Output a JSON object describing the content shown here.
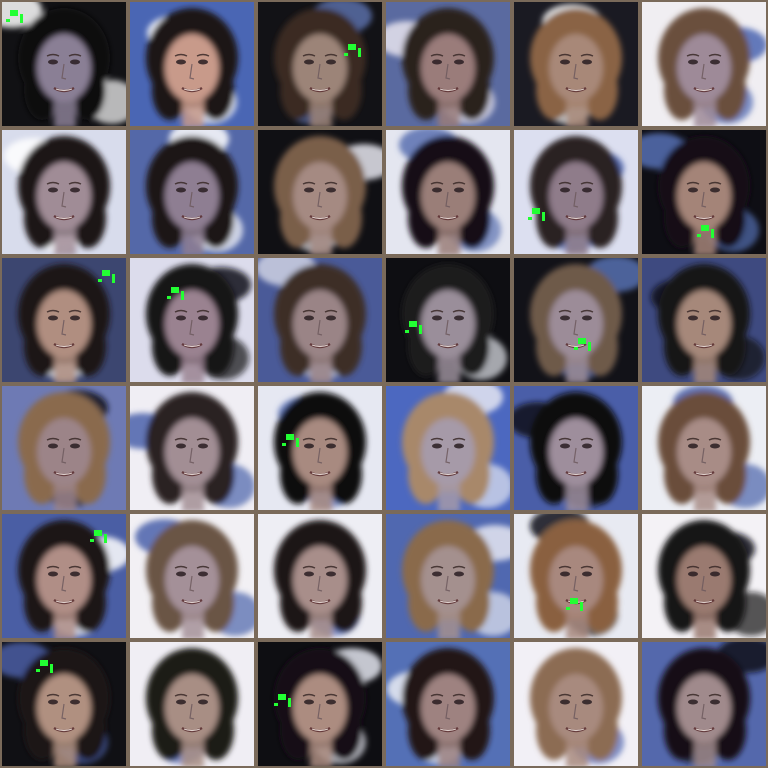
{
  "grid": {
    "rows": 6,
    "cols": 6,
    "tiles": [
      {
        "bg": "#111114",
        "hair": "#0c0b0d",
        "skin": "#8a7f95",
        "cloud": "#ffffff",
        "artifact": "#22ff33"
      },
      {
        "bg": "#4a66b4",
        "hair": "#1b1614",
        "skin": "#c89a8a",
        "cloud": "#ffffff",
        "artifact": ""
      },
      {
        "bg": "#121216",
        "hair": "#3a2a22",
        "skin": "#9c8478",
        "cloud": "#5a6ea8",
        "artifact": "#22ff33"
      },
      {
        "bg": "#5a6aa0",
        "hair": "#2a201c",
        "skin": "#9a7c7a",
        "cloud": "#e8e4ee",
        "artifact": ""
      },
      {
        "bg": "#1a1a22",
        "hair": "#8a6444",
        "skin": "#a88878",
        "cloud": "#ffffff",
        "artifact": ""
      },
      {
        "bg": "#f0eef2",
        "hair": "#6a503c",
        "skin": "#9e8a98",
        "cloud": "#4a64b0",
        "artifact": ""
      },
      {
        "bg": "#d8dcec",
        "hair": "#1a1516",
        "skin": "#a08c96",
        "cloud": "#ffffff",
        "artifact": ""
      },
      {
        "bg": "#5468a8",
        "hair": "#1e1818",
        "skin": "#8e7e92",
        "cloud": "#ffffff",
        "artifact": ""
      },
      {
        "bg": "#101014",
        "hair": "#7a5e4a",
        "skin": "#a58a82",
        "cloud": "#e8e8f0",
        "artifact": ""
      },
      {
        "bg": "#e4e6f0",
        "hair": "#141014",
        "skin": "#9a7e78",
        "cloud": "#5a70b0",
        "artifact": ""
      },
      {
        "bg": "#dcdff0",
        "hair": "#2a2020",
        "skin": "#8f7c8a",
        "cloud": "#4a62aa",
        "artifact": "#22ff33"
      },
      {
        "bg": "#0e0e14",
        "hair": "#121014",
        "skin": "#a48478",
        "cloud": "#5670b4",
        "artifact": "#22ff33"
      },
      {
        "bg": "#3c4670",
        "hair": "#1a1416",
        "skin": "#b08e80",
        "cloud": "#ffffff",
        "artifact": "#22ff33"
      },
      {
        "bg": "#dcdcec",
        "hair": "#161214",
        "skin": "#9a8290",
        "cloud": "#111116",
        "artifact": "#22ff33"
      },
      {
        "bg": "#4a5a98",
        "hair": "#3c2e26",
        "skin": "#9a8486",
        "cloud": "#cfd2e4",
        "artifact": ""
      },
      {
        "bg": "#0e0e12",
        "hair": "#1e1a1e",
        "skin": "#9a8e9a",
        "cloud": "#e6e8f0",
        "artifact": "#22ff33"
      },
      {
        "bg": "#121218",
        "hair": "#6e5a4a",
        "skin": "#9c8c98",
        "cloud": "#5570b0",
        "artifact": "#22ff33"
      },
      {
        "bg": "#3e4a80",
        "hair": "#161214",
        "skin": "#a6887a",
        "cloud": "#121216",
        "artifact": ""
      },
      {
        "bg": "#6e7ab4",
        "hair": "#8a6a4e",
        "skin": "#9c8488",
        "cloud": "#121216",
        "artifact": ""
      },
      {
        "bg": "#f0eef4",
        "hair": "#2a2220",
        "skin": "#a28e94",
        "cloud": "#4a62aa",
        "artifact": ""
      },
      {
        "bg": "#e6e8f2",
        "hair": "#0e0c0e",
        "skin": "#a88a80",
        "cloud": "#5a72b6",
        "artifact": "#22ff33"
      },
      {
        "bg": "#4c68c0",
        "hair": "#a8886a",
        "skin": "#a69aa8",
        "cloud": "#e6e8f2",
        "artifact": ""
      },
      {
        "bg": "#4a5ea8",
        "hair": "#0c0a0e",
        "skin": "#9e8e9c",
        "cloud": "#121216",
        "artifact": ""
      },
      {
        "bg": "#eceef4",
        "hair": "#6a4e3a",
        "skin": "#a88c86",
        "cloud": "#4a62aa",
        "artifact": ""
      },
      {
        "bg": "#4a5ea4",
        "hair": "#1e1818",
        "skin": "#b08e86",
        "cloud": "#ffffff",
        "artifact": "#22ff33"
      },
      {
        "bg": "#f2f0f4",
        "hair": "#6a5444",
        "skin": "#a49098",
        "cloud": "#4a62aa",
        "artifact": ""
      },
      {
        "bg": "#eeeef4",
        "hair": "#1e1818",
        "skin": "#a88e8a",
        "cloud": "#5066b0",
        "artifact": ""
      },
      {
        "bg": "#5068b0",
        "hair": "#8a6a4c",
        "skin": "#a4908e",
        "cloud": "#e6e8f2",
        "artifact": ""
      },
      {
        "bg": "#e8eaf2",
        "hair": "#8a6040",
        "skin": "#a8887e",
        "cloud": "#111116",
        "artifact": "#22ff33"
      },
      {
        "bg": "#f4f2f6",
        "hair": "#181416",
        "skin": "#9a7a70",
        "cloud": "#121216",
        "artifact": ""
      },
      {
        "bg": "#101014",
        "hair": "#1a1416",
        "skin": "#b09080",
        "cloud": "#4a5ea4",
        "artifact": "#22ff33"
      },
      {
        "bg": "#f0eef4",
        "hair": "#1e1a18",
        "skin": "#a88e84",
        "cloud": "#5066b0",
        "artifact": ""
      },
      {
        "bg": "#0e0e12",
        "hair": "#141014",
        "skin": "#ac8c80",
        "cloud": "#e4e6f0",
        "artifact": "#22ff33"
      },
      {
        "bg": "#5470b6",
        "hair": "#201818",
        "skin": "#9e8280",
        "cloud": "#eceef4",
        "artifact": ""
      },
      {
        "bg": "#f2f0f6",
        "hair": "#8c6c52",
        "skin": "#a88a7e",
        "cloud": "#4e66b0",
        "artifact": ""
      },
      {
        "bg": "#5468ac",
        "hair": "#141012",
        "skin": "#a08a8c",
        "cloud": "#101014",
        "artifact": ""
      }
    ]
  }
}
